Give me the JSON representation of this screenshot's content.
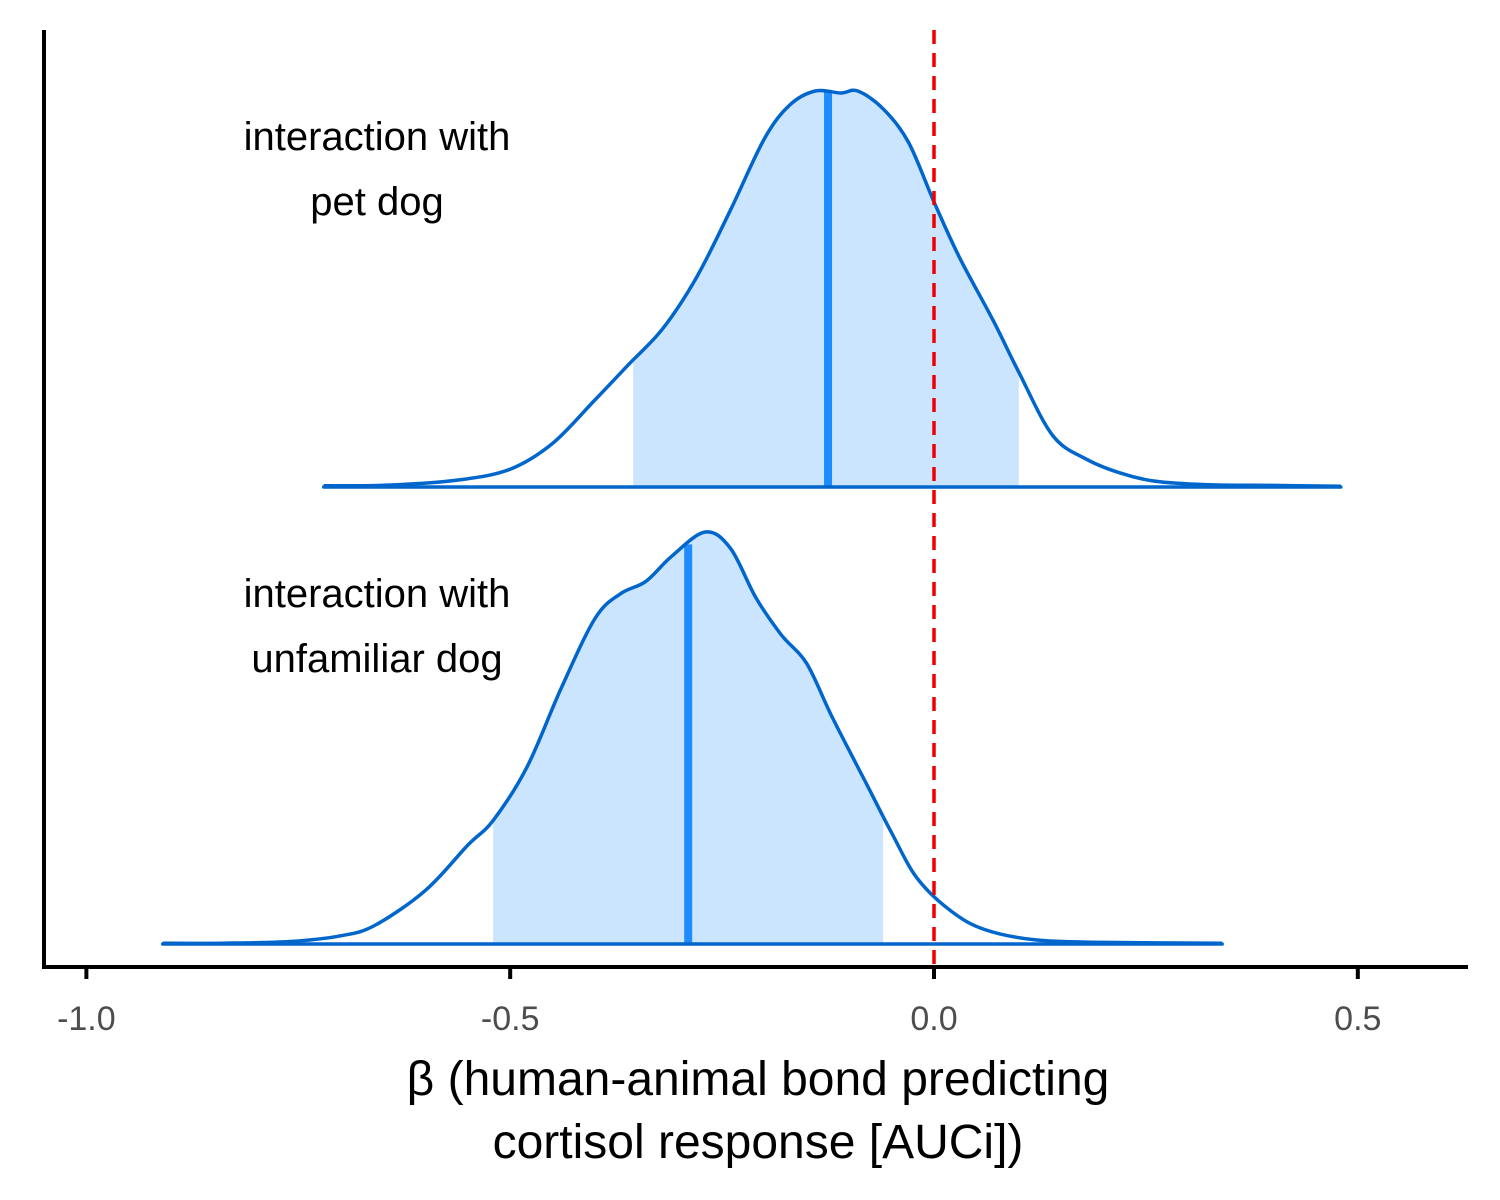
{
  "chart_data": {
    "type": "area",
    "subtype": "ridgeline-density",
    "xlabel_lines": [
      "β (human-animal bond predicting",
      "cortisol response [AUCi])"
    ],
    "xlim": [
      -1.05,
      0.63
    ],
    "xticks": [
      -1.0,
      -0.5,
      0.0,
      0.5
    ],
    "xtick_labels": [
      "-1.0",
      "-0.5",
      "0.0",
      "0.5"
    ],
    "reference_line": {
      "x": 0.0,
      "style": "dashed",
      "color": "#ee0000"
    },
    "colors": {
      "outline": "#0066cc",
      "interval_fill": "#cce5ff",
      "median": "#1e8cff",
      "axis": "#000000"
    },
    "series": [
      {
        "label_lines": [
          "interaction with",
          "pet dog"
        ],
        "median": -0.125,
        "interval": [
          -0.355,
          0.1
        ],
        "density": [
          [
            -0.72,
            0.003
          ],
          [
            -0.64,
            0.005
          ],
          [
            -0.56,
            0.018
          ],
          [
            -0.5,
            0.045
          ],
          [
            -0.45,
            0.11
          ],
          [
            -0.4,
            0.22
          ],
          [
            -0.36,
            0.31
          ],
          [
            -0.32,
            0.4
          ],
          [
            -0.28,
            0.53
          ],
          [
            -0.24,
            0.7
          ],
          [
            -0.2,
            0.88
          ],
          [
            -0.17,
            0.965
          ],
          [
            -0.14,
            1.0
          ],
          [
            -0.11,
            0.995
          ],
          [
            -0.09,
            1.0
          ],
          [
            -0.06,
            0.955
          ],
          [
            -0.03,
            0.87
          ],
          [
            0.0,
            0.72
          ],
          [
            0.03,
            0.58
          ],
          [
            0.07,
            0.42
          ],
          [
            0.1,
            0.29
          ],
          [
            0.14,
            0.13
          ],
          [
            0.18,
            0.07
          ],
          [
            0.22,
            0.035
          ],
          [
            0.26,
            0.015
          ],
          [
            0.32,
            0.006
          ],
          [
            0.4,
            0.004
          ],
          [
            0.48,
            0.002
          ]
        ]
      },
      {
        "label_lines": [
          "interaction with",
          "unfamiliar dog"
        ],
        "median": -0.29,
        "interval": [
          -0.52,
          -0.06
        ],
        "density": [
          [
            -0.91,
            0.002
          ],
          [
            -0.84,
            0.002
          ],
          [
            -0.76,
            0.006
          ],
          [
            -0.7,
            0.02
          ],
          [
            -0.66,
            0.045
          ],
          [
            -0.6,
            0.13
          ],
          [
            -0.55,
            0.24
          ],
          [
            -0.52,
            0.3
          ],
          [
            -0.48,
            0.43
          ],
          [
            -0.44,
            0.62
          ],
          [
            -0.4,
            0.79
          ],
          [
            -0.37,
            0.85
          ],
          [
            -0.34,
            0.88
          ],
          [
            -0.31,
            0.94
          ],
          [
            -0.27,
            1.0
          ],
          [
            -0.24,
            0.96
          ],
          [
            -0.21,
            0.84
          ],
          [
            -0.18,
            0.75
          ],
          [
            -0.15,
            0.68
          ],
          [
            -0.12,
            0.55
          ],
          [
            -0.08,
            0.39
          ],
          [
            -0.05,
            0.27
          ],
          [
            -0.02,
            0.16
          ],
          [
            0.02,
            0.08
          ],
          [
            0.06,
            0.035
          ],
          [
            0.12,
            0.01
          ],
          [
            0.2,
            0.004
          ],
          [
            0.34,
            0.002
          ]
        ]
      }
    ]
  }
}
